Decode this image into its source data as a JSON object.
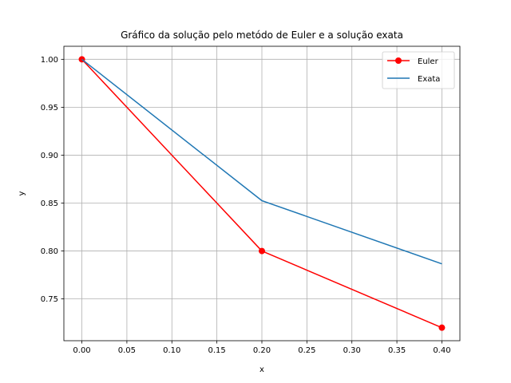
{
  "chart_data": {
    "type": "line",
    "title": "Gráfico da solução pelo metódo de Euler e a solução exata",
    "xlabel": "x",
    "ylabel": "y",
    "xlim": [
      -0.02,
      0.42
    ],
    "ylim": [
      0.7064,
      1.0136
    ],
    "xticks": [
      0.0,
      0.05,
      0.1,
      0.15,
      0.2,
      0.25,
      0.3,
      0.35,
      0.4
    ],
    "xtick_labels": [
      "0.00",
      "0.05",
      "0.10",
      "0.15",
      "0.20",
      "0.25",
      "0.30",
      "0.35",
      "0.40"
    ],
    "yticks": [
      0.75,
      0.8,
      0.85,
      0.9,
      0.95,
      1.0
    ],
    "ytick_labels": [
      "0.75",
      "0.80",
      "0.85",
      "0.90",
      "0.95",
      "1.00"
    ],
    "grid": true,
    "legend_position": "top-right",
    "series": [
      {
        "name": "Euler",
        "color": "#ff0000",
        "marker": "circle",
        "x": [
          0.0,
          0.2,
          0.4
        ],
        "y": [
          1.0,
          0.8,
          0.72
        ]
      },
      {
        "name": "Exata",
        "color": "#1f77b4",
        "marker": "none",
        "x": [
          0.0,
          0.2,
          0.4
        ],
        "y": [
          1.0,
          0.8525,
          0.7866
        ]
      }
    ]
  }
}
